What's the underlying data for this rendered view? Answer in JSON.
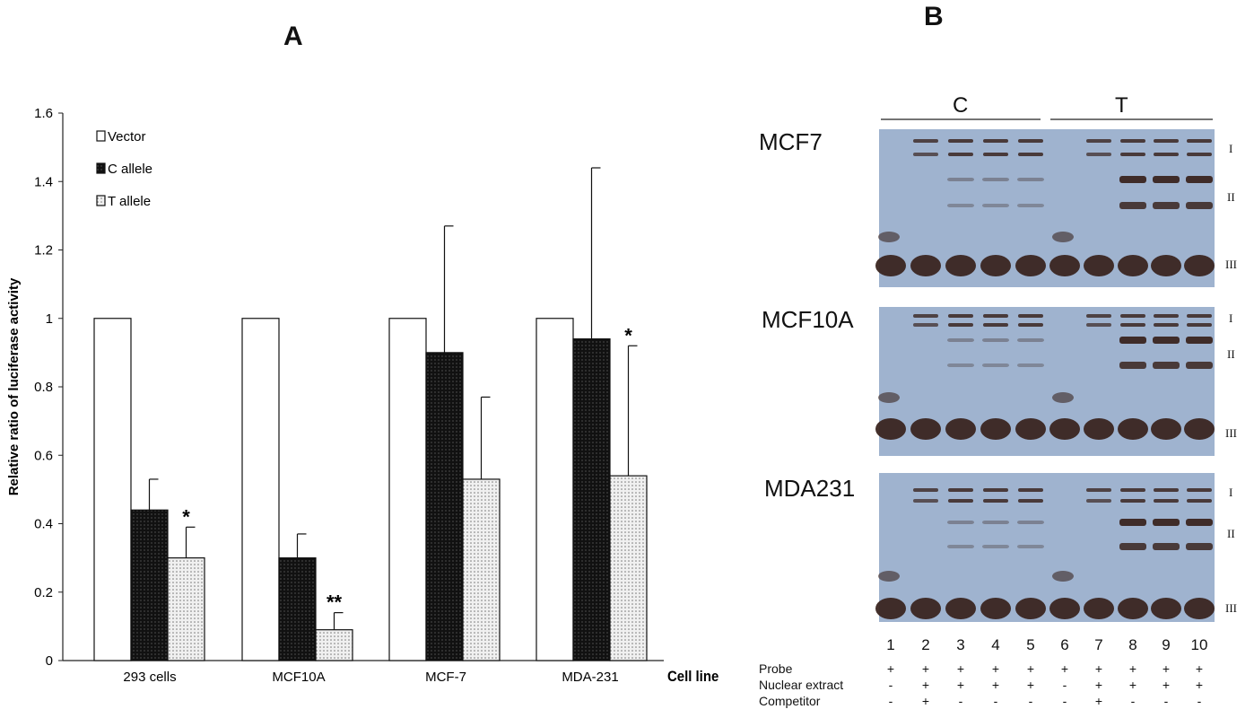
{
  "panels": {
    "a": "A",
    "b": "B"
  },
  "chart_data": {
    "type": "bar",
    "ylabel": "Relative ratio of luciferase activity",
    "xlabel": "Cell line",
    "ylim": [
      0,
      1.6
    ],
    "yticks": [
      "0",
      "0.2",
      "0.4",
      "0.6",
      "0.8",
      "1",
      "1.2",
      "1.4",
      "1.6"
    ],
    "categories": [
      "293 cells",
      "MCF10A",
      "MCF-7",
      "MDA-231"
    ],
    "series": [
      {
        "name": "Vector",
        "values": [
          1.0,
          1.0,
          1.0,
          1.0
        ],
        "error": [
          0,
          0,
          0,
          0
        ],
        "fill": "#ffffff"
      },
      {
        "name": "C allele",
        "values": [
          0.44,
          0.3,
          0.9,
          0.94
        ],
        "error": [
          0.09,
          0.07,
          0.37,
          0.5
        ],
        "fill": "#111111"
      },
      {
        "name": "T allele",
        "values": [
          0.3,
          0.09,
          0.53,
          0.54
        ],
        "error": [
          0.09,
          0.05,
          0.24,
          0.38
        ],
        "fill": "#dcdcdc"
      }
    ],
    "annotations": [
      {
        "category": "293 cells",
        "series": "T allele",
        "text": "*"
      },
      {
        "category": "MCF10A",
        "series": "T allele",
        "text": "**"
      },
      {
        "category": "MDA-231",
        "series": "T allele",
        "text": "*"
      }
    ],
    "legend_position": "top-left",
    "grid": false
  },
  "blot": {
    "groups": [
      "C",
      "T"
    ],
    "rows": [
      {
        "label": "MCF7",
        "bands": [
          "I",
          "II",
          "III"
        ]
      },
      {
        "label": "MCF10A",
        "bands": [
          "I",
          "II",
          "III"
        ]
      },
      {
        "label": "MDA231",
        "bands": [
          "I",
          "II",
          "III"
        ]
      }
    ],
    "lanes": [
      "1",
      "2",
      "3",
      "4",
      "5",
      "6",
      "7",
      "8",
      "9",
      "10"
    ],
    "conditions": [
      {
        "label": "Probe",
        "signs": [
          "+",
          "+",
          "+",
          "+",
          "+",
          "+",
          "+",
          "+",
          "+",
          "+"
        ]
      },
      {
        "label": "Nuclear extract",
        "signs": [
          "-",
          "+",
          "+",
          "+",
          "+",
          "-",
          "+",
          "+",
          "+",
          "+"
        ]
      },
      {
        "label": "Competitor",
        "signs": [
          "-",
          "+",
          "-",
          "-",
          "-",
          "-",
          "+",
          "-",
          "-",
          "-"
        ]
      }
    ],
    "colors": {
      "background": "#9fb3cf",
      "band": "#3a2520"
    }
  }
}
